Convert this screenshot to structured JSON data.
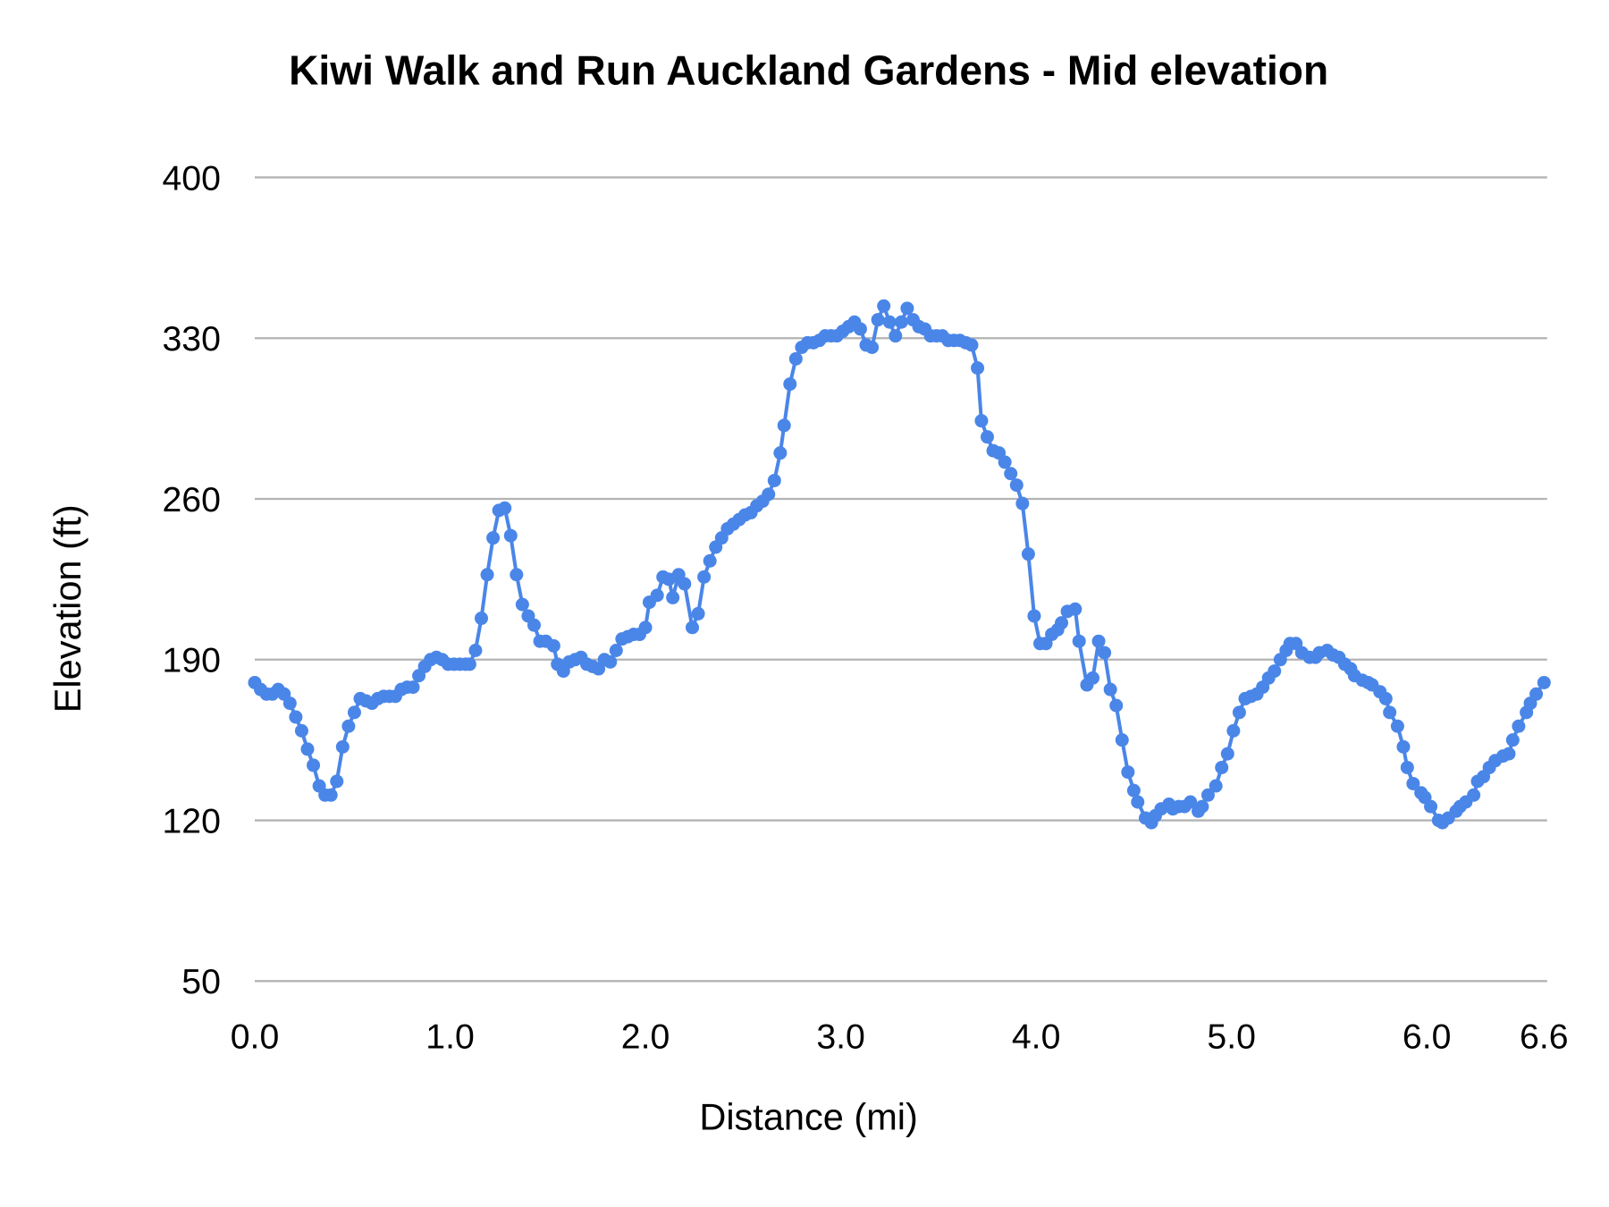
{
  "chart_data": {
    "type": "line",
    "title": "Kiwi Walk and Run Auckland Gardens - Mid elevation",
    "xlabel": "Distance (mi)",
    "ylabel": "Elevation (ft)",
    "xlim": [
      0,
      6.6
    ],
    "ylim": [
      50,
      400
    ],
    "x_ticks": [
      "0.0",
      "1.0",
      "2.0",
      "3.0",
      "4.0",
      "5.0",
      "6.0",
      "6.6"
    ],
    "x_tick_values": [
      0,
      1,
      2,
      3,
      4,
      5,
      6,
      6.6
    ],
    "y_ticks": [
      "50",
      "120",
      "190",
      "260",
      "330",
      "400"
    ],
    "y_tick_values": [
      50,
      120,
      190,
      260,
      330,
      400
    ],
    "grid": "horizontal",
    "markers": true,
    "colors": {
      "series": "#4a86e8",
      "grid": "#b3b3b3"
    },
    "x": [
      0.0,
      0.03,
      0.06,
      0.09,
      0.12,
      0.15,
      0.18,
      0.21,
      0.24,
      0.27,
      0.3,
      0.33,
      0.36,
      0.39,
      0.42,
      0.45,
      0.48,
      0.51,
      0.54,
      0.57,
      0.6,
      0.63,
      0.66,
      0.69,
      0.72,
      0.75,
      0.78,
      0.81,
      0.84,
      0.87,
      0.9,
      0.93,
      0.96,
      0.99,
      1.02,
      1.05,
      1.08,
      1.1,
      1.13,
      1.16,
      1.19,
      1.22,
      1.25,
      1.28,
      1.31,
      1.34,
      1.37,
      1.4,
      1.43,
      1.46,
      1.49,
      1.53,
      1.55,
      1.58,
      1.61,
      1.64,
      1.67,
      1.7,
      1.73,
      1.76,
      1.79,
      1.82,
      1.85,
      1.88,
      1.91,
      1.94,
      1.97,
      2.0,
      2.02,
      2.06,
      2.09,
      2.12,
      2.14,
      2.17,
      2.2,
      2.24,
      2.27,
      2.3,
      2.33,
      2.36,
      2.39,
      2.42,
      2.45,
      2.48,
      2.51,
      2.54,
      2.57,
      2.6,
      2.63,
      2.66,
      2.69,
      2.71,
      2.74,
      2.77,
      2.8,
      2.83,
      2.86,
      2.89,
      2.92,
      2.95,
      2.98,
      3.01,
      3.04,
      3.07,
      3.1,
      3.13,
      3.16,
      3.19,
      3.22,
      3.25,
      3.28,
      3.31,
      3.34,
      3.37,
      3.4,
      3.43,
      3.46,
      3.49,
      3.52,
      3.55,
      3.58,
      3.61,
      3.64,
      3.67,
      3.7,
      3.72,
      3.75,
      3.78,
      3.81,
      3.84,
      3.87,
      3.9,
      3.93,
      3.96,
      3.99,
      4.02,
      4.05,
      4.08,
      4.11,
      4.13,
      4.16,
      4.2,
      4.22,
      4.26,
      4.29,
      4.32,
      4.35,
      4.38,
      4.41,
      4.44,
      4.47,
      4.5,
      4.52,
      4.56,
      4.59,
      4.61,
      4.64,
      4.68,
      4.7,
      4.73,
      4.76,
      4.79,
      4.83,
      4.85,
      4.88,
      4.92,
      4.95,
      4.98,
      5.01,
      5.04,
      5.07,
      5.1,
      5.13,
      5.16,
      5.19,
      5.22,
      5.25,
      5.28,
      5.3,
      5.33,
      5.36,
      5.4,
      5.43,
      5.45,
      5.49,
      5.52,
      5.55,
      5.58,
      5.61,
      5.63,
      5.67,
      5.7,
      5.72,
      5.76,
      5.79,
      5.81,
      5.85,
      5.88,
      5.9,
      5.93,
      5.97,
      5.99,
      6.02,
      6.06,
      6.08,
      6.11,
      6.15,
      6.17,
      6.2,
      6.24,
      6.26,
      6.29,
      6.32,
      6.35,
      6.39,
      6.42,
      6.44,
      6.47,
      6.51,
      6.53,
      6.56,
      6.6
    ],
    "y": [
      180,
      177,
      175,
      175,
      177,
      175,
      171,
      165,
      159,
      151,
      144,
      135,
      131,
      131,
      137,
      152,
      161,
      167,
      173,
      172,
      171,
      173,
      174,
      174,
      174,
      177,
      178,
      178,
      183,
      187,
      190,
      191,
      190,
      188,
      188,
      188,
      188,
      188,
      194,
      208,
      227,
      243,
      255,
      256,
      244,
      227,
      214,
      209,
      205,
      198,
      198,
      196,
      188,
      185,
      189,
      190,
      191,
      188,
      187,
      186,
      190,
      189,
      194,
      199,
      200,
      201,
      201,
      204,
      215,
      218,
      226,
      225,
      217,
      227,
      223,
      204,
      210,
      226,
      233,
      239,
      243,
      247,
      249,
      251,
      253,
      254,
      257,
      259,
      262,
      268,
      280,
      292,
      310,
      321,
      326,
      328,
      328,
      329,
      331,
      331,
      331,
      333,
      335,
      337,
      334,
      327,
      326,
      338,
      344,
      337,
      331,
      337,
      343,
      338,
      335,
      334,
      331,
      331,
      331,
      329,
      329,
      329,
      328,
      327,
      317,
      294,
      287,
      281,
      280,
      276,
      271,
      266,
      258,
      236,
      209,
      197,
      197,
      201,
      203,
      206,
      211,
      212,
      198,
      179,
      182,
      198,
      193,
      177,
      170,
      155,
      141,
      133,
      128,
      121,
      119,
      122,
      125,
      127,
      125,
      126,
      126,
      128,
      124,
      126,
      131,
      135,
      143,
      149,
      159,
      167,
      173,
      174,
      175,
      178,
      182,
      185,
      190,
      194,
      197,
      197,
      193,
      191,
      191,
      193,
      194,
      192,
      191,
      188,
      186,
      183,
      181,
      180,
      179,
      176,
      173,
      167,
      161,
      152,
      143,
      136,
      132,
      130,
      126,
      120,
      119,
      121,
      124,
      126,
      128,
      131,
      137,
      139,
      143,
      146,
      148,
      149,
      155,
      161,
      167,
      171,
      175,
      180
    ]
  }
}
